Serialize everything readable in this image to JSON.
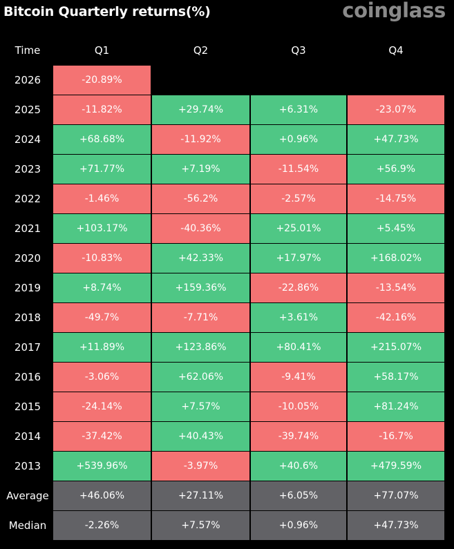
{
  "header": {
    "title": "Bitcoin Quarterly returns(%)",
    "logo_text": "coinglass"
  },
  "colors": {
    "positive": "#4fc785",
    "negative": "#f47373",
    "summary": "#626266",
    "background": "#000000"
  },
  "chart_data": {
    "type": "table",
    "title": "Bitcoin Quarterly returns(%)",
    "corner_label": "Time",
    "columns": [
      "Q1",
      "Q2",
      "Q3",
      "Q4"
    ],
    "rows": [
      {
        "label": "2026",
        "values": [
          "-20.89%",
          "",
          "",
          ""
        ]
      },
      {
        "label": "2025",
        "values": [
          "-11.82%",
          "+29.74%",
          "+6.31%",
          "-23.07%"
        ]
      },
      {
        "label": "2024",
        "values": [
          "+68.68%",
          "-11.92%",
          "+0.96%",
          "+47.73%"
        ]
      },
      {
        "label": "2023",
        "values": [
          "+71.77%",
          "+7.19%",
          "-11.54%",
          "+56.9%"
        ]
      },
      {
        "label": "2022",
        "values": [
          "-1.46%",
          "-56.2%",
          "-2.57%",
          "-14.75%"
        ]
      },
      {
        "label": "2021",
        "values": [
          "+103.17%",
          "-40.36%",
          "+25.01%",
          "+5.45%"
        ]
      },
      {
        "label": "2020",
        "values": [
          "-10.83%",
          "+42.33%",
          "+17.97%",
          "+168.02%"
        ]
      },
      {
        "label": "2019",
        "values": [
          "+8.74%",
          "+159.36%",
          "-22.86%",
          "-13.54%"
        ]
      },
      {
        "label": "2018",
        "values": [
          "-49.7%",
          "-7.71%",
          "+3.61%",
          "-42.16%"
        ]
      },
      {
        "label": "2017",
        "values": [
          "+11.89%",
          "+123.86%",
          "+80.41%",
          "+215.07%"
        ]
      },
      {
        "label": "2016",
        "values": [
          "-3.06%",
          "+62.06%",
          "-9.41%",
          "+58.17%"
        ]
      },
      {
        "label": "2015",
        "values": [
          "-24.14%",
          "+7.57%",
          "-10.05%",
          "+81.24%"
        ]
      },
      {
        "label": "2014",
        "values": [
          "-37.42%",
          "+40.43%",
          "-39.74%",
          "-16.7%"
        ]
      },
      {
        "label": "2013",
        "values": [
          "+539.96%",
          "-3.97%",
          "+40.6%",
          "+479.59%"
        ]
      }
    ],
    "summary_rows": [
      {
        "label": "Average",
        "values": [
          "+46.06%",
          "+27.11%",
          "+6.05%",
          "+77.07%"
        ]
      },
      {
        "label": "Median",
        "values": [
          "-2.26%",
          "+7.57%",
          "+0.96%",
          "+47.73%"
        ]
      }
    ]
  }
}
